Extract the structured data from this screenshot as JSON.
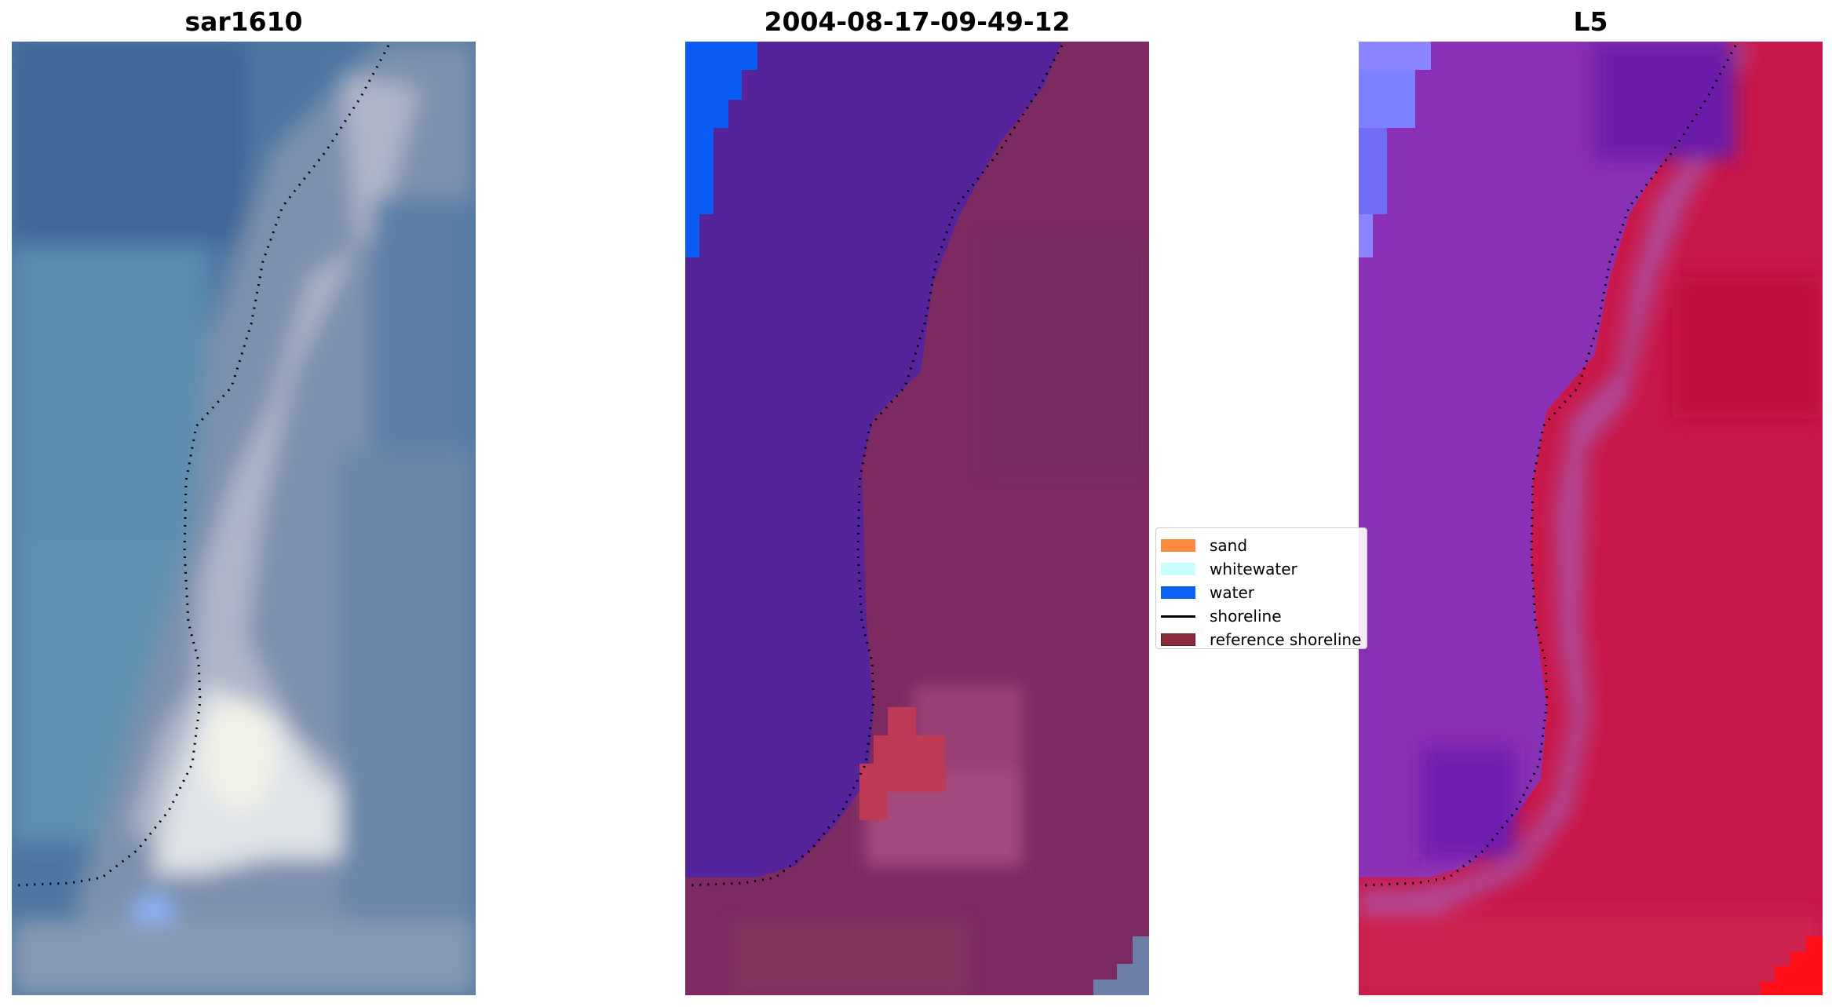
{
  "panels": [
    {
      "title": "sar1610"
    },
    {
      "title": "2004-08-17-09-49-12"
    },
    {
      "title": "L5"
    }
  ],
  "legend": {
    "items": [
      {
        "label": "sand",
        "color": "#fb8b3f",
        "kind": "patch"
      },
      {
        "label": "whitewater",
        "color": "#c9fdfb",
        "kind": "patch"
      },
      {
        "label": "water",
        "color": "#0b63f3",
        "kind": "patch"
      },
      {
        "label": "shoreline",
        "color": "#000000",
        "kind": "line"
      },
      {
        "label": "reference shoreline",
        "color": "#8a2a3a",
        "kind": "patch"
      }
    ]
  },
  "colors": {
    "rgb_water": "#4a74a0",
    "rgb_land": "#8ea0b8",
    "class_water_overlay": "#55239a",
    "class_land": "#7d2a62",
    "class_blue_corner": "#0b5cf5",
    "index_water": "#8a30b4",
    "index_land": "#c81446",
    "index_light_corner": "#8a85ff",
    "index_red_corner": "#ff0e18"
  }
}
